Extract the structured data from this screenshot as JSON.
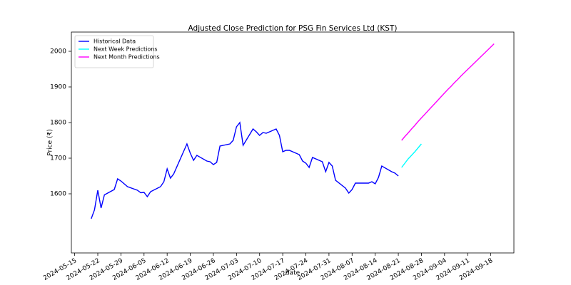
{
  "chart_data": {
    "type": "line",
    "title": "Adjusted Close Prediction for PSG Fin Services Ltd (KST)",
    "xlabel": "date",
    "ylabel": "Price (₹)",
    "xlim": [
      "2024-05-14",
      "2024-09-25"
    ],
    "xticks": [
      "2024-05-15",
      "2024-05-22",
      "2024-05-29",
      "2024-06-05",
      "2024-06-12",
      "2024-06-19",
      "2024-06-26",
      "2024-07-03",
      "2024-07-10",
      "2024-07-17",
      "2024-07-24",
      "2024-07-31",
      "2024-08-07",
      "2024-08-14",
      "2024-08-21",
      "2024-08-28",
      "2024-09-04",
      "2024-09-11",
      "2024-09-18"
    ],
    "ylim": [
      1434,
      2054
    ],
    "yticks": [
      1600,
      1700,
      1800,
      1900,
      2000
    ],
    "legend": "upper left",
    "series": [
      {
        "name": "Historical Data",
        "color": "#0000ff",
        "x": [
          "2024-05-20",
          "2024-05-21",
          "2024-05-22",
          "2024-05-23",
          "2024-05-24",
          "2024-05-27",
          "2024-05-28",
          "2024-05-29",
          "2024-05-30",
          "2024-05-31",
          "2024-06-03",
          "2024-06-04",
          "2024-06-05",
          "2024-06-06",
          "2024-06-07",
          "2024-06-10",
          "2024-06-11",
          "2024-06-12",
          "2024-06-13",
          "2024-06-14",
          "2024-06-18",
          "2024-06-19",
          "2024-06-20",
          "2024-06-21",
          "2024-06-24",
          "2024-06-25",
          "2024-06-26",
          "2024-06-27",
          "2024-06-28",
          "2024-07-01",
          "2024-07-02",
          "2024-07-03",
          "2024-07-04",
          "2024-07-05",
          "2024-07-08",
          "2024-07-09",
          "2024-07-10",
          "2024-07-11",
          "2024-07-12",
          "2024-07-15",
          "2024-07-16",
          "2024-07-17",
          "2024-07-18",
          "2024-07-19",
          "2024-07-22",
          "2024-07-23",
          "2024-07-24",
          "2024-07-25",
          "2024-07-26",
          "2024-07-29",
          "2024-07-30",
          "2024-07-31",
          "2024-08-01",
          "2024-08-02",
          "2024-08-05",
          "2024-08-06",
          "2024-08-07",
          "2024-08-08",
          "2024-08-09",
          "2024-08-12",
          "2024-08-13",
          "2024-08-14",
          "2024-08-15",
          "2024-08-16",
          "2024-08-19",
          "2024-08-20",
          "2024-08-21"
        ],
        "values": [
          1530,
          1555,
          1610,
          1560,
          1597,
          1612,
          1642,
          1636,
          1628,
          1620,
          1610,
          1603,
          1604,
          1592,
          1606,
          1620,
          1634,
          1670,
          1644,
          1656,
          1740,
          1714,
          1694,
          1708,
          1692,
          1690,
          1682,
          1688,
          1734,
          1740,
          1750,
          1788,
          1800,
          1736,
          1782,
          1774,
          1764,
          1772,
          1770,
          1782,
          1764,
          1718,
          1722,
          1722,
          1710,
          1692,
          1686,
          1674,
          1702,
          1690,
          1662,
          1688,
          1678,
          1638,
          1616,
          1602,
          1612,
          1630,
          1630,
          1630,
          1634,
          1628,
          1646,
          1678,
          1662,
          1658,
          1650
        ]
      },
      {
        "name": "Next Week Predictions",
        "color": "#00ffff",
        "x": [
          "2024-08-22",
          "2024-08-23",
          "2024-08-24",
          "2024-08-25",
          "2024-08-26",
          "2024-08-27",
          "2024-08-28"
        ],
        "values": [
          1674,
          1686,
          1698,
          1708,
          1718,
          1729,
          1740
        ]
      },
      {
        "name": "Next Month Predictions",
        "color": "#ff00ff",
        "x": [
          "2024-08-22",
          "2024-08-23",
          "2024-08-24",
          "2024-08-25",
          "2024-08-26",
          "2024-08-27",
          "2024-08-28",
          "2024-08-29",
          "2024-08-30",
          "2024-08-31",
          "2024-09-01",
          "2024-09-02",
          "2024-09-03",
          "2024-09-04",
          "2024-09-05",
          "2024-09-06",
          "2024-09-07",
          "2024-09-08",
          "2024-09-09",
          "2024-09-10",
          "2024-09-11",
          "2024-09-12",
          "2024-09-13",
          "2024-09-14",
          "2024-09-15",
          "2024-09-16",
          "2024-09-17",
          "2024-09-18",
          "2024-09-19"
        ],
        "values": [
          1750,
          1761,
          1771,
          1782,
          1792,
          1803,
          1813,
          1823,
          1833,
          1843,
          1853,
          1863,
          1873,
          1883,
          1893,
          1902,
          1912,
          1921,
          1931,
          1940,
          1949,
          1958,
          1967,
          1976,
          1985,
          1994,
          2003,
          2012,
          2021
        ]
      }
    ]
  }
}
